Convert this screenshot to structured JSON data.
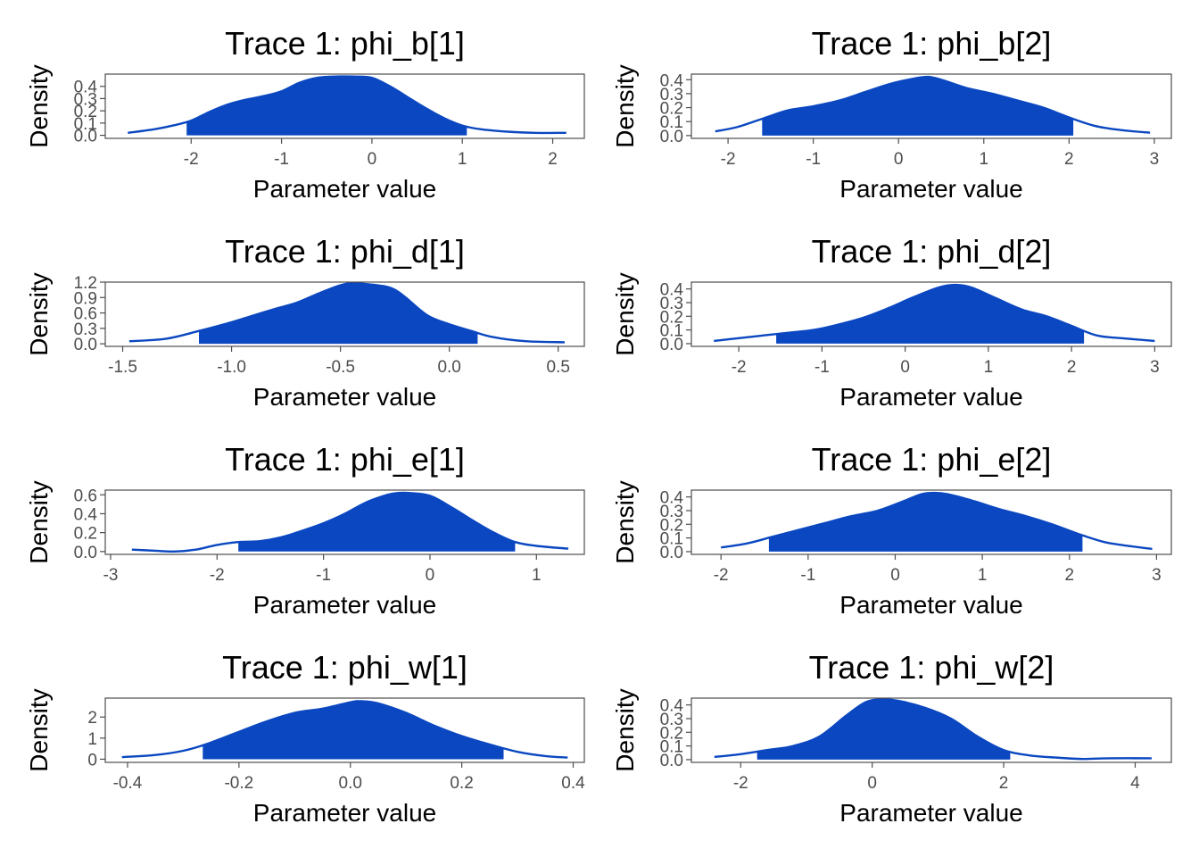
{
  "style": {
    "line_color": "#0a47c0",
    "fill_color": "#0a47c0",
    "axis_color": "#4d4d4d",
    "background": "#ffffff"
  },
  "chart_data": [
    {
      "type": "area",
      "title": "Trace 1: phi_b[1]",
      "xlabel": "Parameter value",
      "ylabel": "Density",
      "xlim": [
        -2.95,
        2.35
      ],
      "ylim": [
        -0.025,
        0.5
      ],
      "xticks": [
        -2,
        -1,
        0,
        1,
        2
      ],
      "xtick_labels": [
        "-2",
        "-1",
        "0",
        "1",
        "2"
      ],
      "yticks": [
        0.0,
        0.1,
        0.2,
        0.3,
        0.4
      ],
      "ytick_labels": [
        "0.0",
        "0.1",
        "0.2",
        "0.3",
        "0.4"
      ],
      "shade_range": [
        -2.05,
        1.05
      ],
      "x": [
        -2.7,
        -2.4,
        -2.2,
        -2.0,
        -1.8,
        -1.6,
        -1.4,
        -1.2,
        -1.0,
        -0.8,
        -0.6,
        -0.4,
        -0.2,
        0.0,
        0.2,
        0.4,
        0.6,
        0.8,
        1.0,
        1.2,
        1.5,
        1.8,
        2.15
      ],
      "y": [
        0.02,
        0.05,
        0.08,
        0.12,
        0.19,
        0.25,
        0.29,
        0.32,
        0.36,
        0.43,
        0.47,
        0.48,
        0.48,
        0.47,
        0.4,
        0.31,
        0.22,
        0.14,
        0.08,
        0.05,
        0.03,
        0.02,
        0.02
      ]
    },
    {
      "type": "area",
      "title": "Trace 1: phi_b[2]",
      "xlabel": "Parameter value",
      "ylabel": "Density",
      "xlim": [
        -2.43,
        3.2
      ],
      "ylim": [
        -0.02,
        0.44
      ],
      "xticks": [
        -2,
        -1,
        0,
        1,
        2,
        3
      ],
      "xtick_labels": [
        "-2",
        "-1",
        "0",
        "1",
        "2",
        "3"
      ],
      "yticks": [
        0.0,
        0.1,
        0.2,
        0.3,
        0.4
      ],
      "ytick_labels": [
        "0.0",
        "0.1",
        "0.2",
        "0.3",
        "0.4"
      ],
      "shade_range": [
        -1.6,
        2.05
      ],
      "x": [
        -2.15,
        -1.9,
        -1.6,
        -1.3,
        -1.0,
        -0.7,
        -0.4,
        -0.1,
        0.2,
        0.35,
        0.5,
        0.8,
        1.1,
        1.4,
        1.7,
        2.0,
        2.3,
        2.6,
        2.95
      ],
      "y": [
        0.03,
        0.06,
        0.12,
        0.18,
        0.21,
        0.25,
        0.31,
        0.37,
        0.41,
        0.42,
        0.4,
        0.34,
        0.3,
        0.25,
        0.2,
        0.13,
        0.07,
        0.04,
        0.02
      ]
    },
    {
      "type": "area",
      "title": "Trace 1: phi_d[1]",
      "xlabel": "Parameter value",
      "ylabel": "Density",
      "xlim": [
        -1.58,
        0.62
      ],
      "ylim": [
        -0.05,
        1.2
      ],
      "xticks": [
        -1.5,
        -1.0,
        -0.5,
        0.0,
        0.5
      ],
      "xtick_labels": [
        "-1.5",
        "-1.0",
        "-0.5",
        "0.0",
        "0.5"
      ],
      "yticks": [
        0.0,
        0.3,
        0.6,
        0.9,
        1.2
      ],
      "ytick_labels": [
        "0.0",
        "0.3",
        "0.6",
        "0.9",
        "1.2"
      ],
      "shade_range": [
        -1.15,
        0.13
      ],
      "x": [
        -1.47,
        -1.3,
        -1.15,
        -1.0,
        -0.9,
        -0.8,
        -0.7,
        -0.6,
        -0.5,
        -0.45,
        -0.4,
        -0.3,
        -0.25,
        -0.2,
        -0.1,
        0.0,
        0.1,
        0.2,
        0.35,
        0.53
      ],
      "y": [
        0.05,
        0.1,
        0.25,
        0.42,
        0.55,
        0.68,
        0.8,
        0.98,
        1.14,
        1.18,
        1.17,
        1.12,
        1.05,
        0.9,
        0.55,
        0.38,
        0.25,
        0.13,
        0.05,
        0.03
      ]
    },
    {
      "type": "area",
      "title": "Trace 1: phi_d[2]",
      "xlabel": "Parameter value",
      "ylabel": "Density",
      "xlim": [
        -2.57,
        3.2
      ],
      "ylim": [
        -0.02,
        0.45
      ],
      "xticks": [
        -2,
        -1,
        0,
        1,
        2,
        3
      ],
      "xtick_labels": [
        "-2",
        "-1",
        "0",
        "1",
        "2",
        "3"
      ],
      "yticks": [
        0.0,
        0.1,
        0.2,
        0.3,
        0.4
      ],
      "ytick_labels": [
        "0.0",
        "0.1",
        "0.2",
        "0.3",
        "0.4"
      ],
      "shade_range": [
        -1.55,
        2.15
      ],
      "x": [
        -2.3,
        -2.0,
        -1.7,
        -1.4,
        -1.1,
        -0.8,
        -0.5,
        -0.2,
        0.1,
        0.4,
        0.6,
        0.8,
        1.1,
        1.4,
        1.7,
        2.0,
        2.3,
        2.6,
        3.0
      ],
      "y": [
        0.02,
        0.04,
        0.06,
        0.08,
        0.1,
        0.14,
        0.19,
        0.26,
        0.34,
        0.41,
        0.43,
        0.41,
        0.33,
        0.25,
        0.2,
        0.13,
        0.06,
        0.04,
        0.02
      ]
    },
    {
      "type": "area",
      "title": "Trace 1: phi_e[1]",
      "xlabel": "Parameter value",
      "ylabel": "Density",
      "xlim": [
        -3.05,
        1.45
      ],
      "ylim": [
        -0.03,
        0.65
      ],
      "xticks": [
        -3,
        -2,
        -1,
        0,
        1
      ],
      "xtick_labels": [
        "-3",
        "-2",
        "-1",
        "0",
        "1"
      ],
      "yticks": [
        0.0,
        0.2,
        0.4,
        0.6
      ],
      "ytick_labels": [
        "0.0",
        "0.2",
        "0.4",
        "0.6"
      ],
      "shade_range": [
        -1.8,
        0.8
      ],
      "x": [
        -2.8,
        -2.6,
        -2.4,
        -2.2,
        -2.0,
        -1.8,
        -1.6,
        -1.4,
        -1.2,
        -1.0,
        -0.8,
        -0.6,
        -0.4,
        -0.3,
        -0.2,
        0.0,
        0.2,
        0.4,
        0.6,
        0.8,
        1.0,
        1.3
      ],
      "y": [
        0.02,
        0.01,
        0.0,
        0.02,
        0.07,
        0.1,
        0.11,
        0.15,
        0.22,
        0.3,
        0.4,
        0.52,
        0.6,
        0.62,
        0.62,
        0.59,
        0.47,
        0.33,
        0.2,
        0.1,
        0.06,
        0.03
      ]
    },
    {
      "type": "area",
      "title": "Trace 1: phi_e[2]",
      "xlabel": "Parameter value",
      "ylabel": "Density",
      "xlim": [
        -2.34,
        3.17
      ],
      "ylim": [
        -0.02,
        0.45
      ],
      "xticks": [
        -2,
        -1,
        0,
        1,
        2,
        3
      ],
      "xtick_labels": [
        "-2",
        "-1",
        "0",
        "1",
        "2",
        "3"
      ],
      "yticks": [
        0.0,
        0.1,
        0.2,
        0.3,
        0.4
      ],
      "ytick_labels": [
        "0.0",
        "0.1",
        "0.2",
        "0.3",
        "0.4"
      ],
      "shade_range": [
        -1.45,
        2.15
      ],
      "x": [
        -2.0,
        -1.7,
        -1.4,
        -1.1,
        -0.8,
        -0.5,
        -0.2,
        0.1,
        0.3,
        0.45,
        0.6,
        0.9,
        1.2,
        1.5,
        1.8,
        2.1,
        2.4,
        2.7,
        2.95
      ],
      "y": [
        0.03,
        0.06,
        0.11,
        0.16,
        0.21,
        0.26,
        0.3,
        0.37,
        0.42,
        0.43,
        0.42,
        0.37,
        0.31,
        0.26,
        0.2,
        0.13,
        0.07,
        0.04,
        0.02
      ]
    },
    {
      "type": "area",
      "title": "Trace 1: phi_w[1]",
      "xlabel": "Parameter value",
      "ylabel": "Density",
      "xlim": [
        -0.44,
        0.42
      ],
      "ylim": [
        -0.15,
        2.9
      ],
      "xticks": [
        -0.4,
        -0.2,
        0.0,
        0.2,
        0.4
      ],
      "xtick_labels": [
        "-0.4",
        "-0.2",
        "0.0",
        "0.2",
        "0.4"
      ],
      "yticks": [
        0,
        1,
        2
      ],
      "ytick_labels": [
        "0",
        "1",
        "2"
      ],
      "shade_range": [
        -0.265,
        0.275
      ],
      "x": [
        -0.41,
        -0.35,
        -0.3,
        -0.26,
        -0.2,
        -0.15,
        -0.1,
        -0.05,
        0.0,
        0.02,
        0.05,
        0.1,
        0.15,
        0.2,
        0.25,
        0.3,
        0.35,
        0.39
      ],
      "y": [
        0.1,
        0.2,
        0.4,
        0.7,
        1.3,
        1.8,
        2.2,
        2.4,
        2.7,
        2.75,
        2.65,
        2.2,
        1.6,
        1.1,
        0.7,
        0.35,
        0.15,
        0.08
      ]
    },
    {
      "type": "area",
      "title": "Trace 1: phi_w[2]",
      "xlabel": "Parameter value",
      "ylabel": "Density",
      "xlim": [
        -2.75,
        4.55
      ],
      "ylim": [
        -0.02,
        0.45
      ],
      "xticks": [
        -2,
        0,
        2,
        4
      ],
      "xtick_labels": [
        "-2",
        "0",
        "2",
        "4"
      ],
      "yticks": [
        0.0,
        0.1,
        0.2,
        0.3,
        0.4
      ],
      "ytick_labels": [
        "0.0",
        "0.1",
        "0.2",
        "0.3",
        "0.4"
      ],
      "shade_range": [
        -1.75,
        2.1
      ],
      "x": [
        -2.4,
        -2.0,
        -1.6,
        -1.2,
        -0.8,
        -0.4,
        -0.1,
        0.15,
        0.4,
        0.8,
        1.2,
        1.6,
        2.0,
        2.4,
        2.8,
        3.2,
        3.6,
        4.25
      ],
      "y": [
        0.02,
        0.04,
        0.07,
        0.1,
        0.17,
        0.32,
        0.42,
        0.44,
        0.43,
        0.38,
        0.3,
        0.17,
        0.07,
        0.03,
        0.015,
        0.005,
        0.01,
        0.01
      ]
    }
  ]
}
